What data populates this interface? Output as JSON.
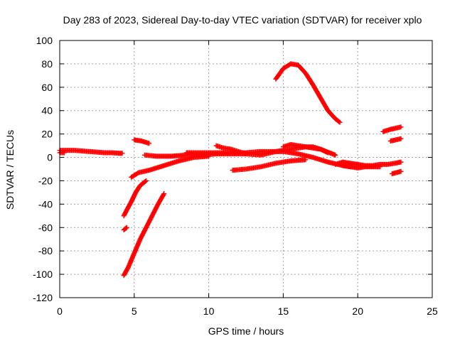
{
  "chart_data": {
    "type": "scatter",
    "title": "Day 283 of 2023, Sidereal Day-to-day VTEC variation (SDTVAR) for receiver xplo",
    "xlabel": "GPS time / hours",
    "ylabel": "SDTVAR / TECUs",
    "xlim": [
      0,
      25
    ],
    "ylim": [
      -120,
      100
    ],
    "xticks": [
      0,
      5,
      10,
      15,
      20,
      25
    ],
    "yticks": [
      -120,
      -100,
      -80,
      -60,
      -40,
      -20,
      0,
      20,
      40,
      60,
      80,
      100
    ],
    "grid": true,
    "series_color": "#ff0000",
    "marker": "plus",
    "series": [
      {
        "x": [
          0.0,
          0.5,
          1.0,
          1.5,
          2.0,
          2.5,
          3.0,
          3.5,
          4.0,
          4.2
        ],
        "y": [
          6,
          6,
          6,
          5.5,
          5,
          4.5,
          4,
          4,
          3.5,
          3.5
        ]
      },
      {
        "x": [
          0.0,
          0.3
        ],
        "y": [
          4,
          4
        ]
      },
      {
        "x": [
          4.3,
          4.5,
          4.8,
          5.1,
          5.4,
          5.8
        ],
        "y": [
          -50,
          -45,
          -38,
          -30,
          -24,
          -20
        ]
      },
      {
        "x": [
          4.3,
          4.5
        ],
        "y": [
          -62,
          -60
        ]
      },
      {
        "x": [
          4.3,
          4.6,
          5.0,
          5.4,
          5.8,
          6.2,
          6.6,
          7.0
        ],
        "y": [
          -101,
          -94,
          -82,
          -70,
          -60,
          -50,
          -40,
          -31
        ]
      },
      {
        "x": [
          4.8,
          5.3,
          6.0,
          7.0,
          8.0,
          9.0,
          10.0
        ],
        "y": [
          -17,
          -13,
          -11,
          -7,
          -3,
          0,
          1
        ]
      },
      {
        "x": [
          5.0,
          5.5,
          6.0
        ],
        "y": [
          15,
          14,
          12
        ]
      },
      {
        "x": [
          5.7,
          6.5,
          7.5,
          8.5,
          9.5,
          10.5,
          11.5,
          12.5,
          13.5,
          14.5,
          15.5,
          16.5,
          17.5,
          18.5
        ],
        "y": [
          2,
          1,
          1,
          2,
          2,
          3,
          3,
          3,
          2,
          5,
          7,
          9,
          7,
          2
        ]
      },
      {
        "x": [
          8.5,
          9.5,
          10.5,
          11.5,
          12.5,
          13.5,
          14.5,
          15.0,
          16.0,
          17.0,
          18.0,
          19.0,
          19.5
        ],
        "y": [
          4,
          4,
          4,
          4,
          4,
          5,
          5,
          5,
          3,
          0,
          -4,
          -7,
          -8
        ]
      },
      {
        "x": [
          10.5,
          11.0,
          11.5,
          12.0,
          12.5
        ],
        "y": [
          10,
          8,
          7,
          5,
          3
        ]
      },
      {
        "x": [
          11.6,
          12.5,
          13.5,
          14.5,
          15.5,
          16.5
        ],
        "y": [
          -11,
          -10,
          -8,
          -5,
          -3,
          -2
        ]
      },
      {
        "x": [
          14.5,
          15.0,
          15.5,
          16.0,
          16.5,
          17.0,
          17.5,
          18.0,
          18.5,
          18.8
        ],
        "y": [
          67,
          76,
          80,
          79,
          72,
          62,
          51,
          40,
          33,
          30
        ]
      },
      {
        "x": [
          15.0,
          15.5,
          16.0,
          16.5,
          17.0,
          17.5,
          18.0
        ],
        "y": [
          9,
          11,
          10,
          9,
          9,
          7,
          4
        ]
      },
      {
        "x": [
          18.5,
          19.0,
          19.5,
          20.0,
          20.5,
          21.0,
          21.5,
          22.0,
          22.5,
          22.9
        ],
        "y": [
          -6,
          -4,
          -5,
          -6,
          -7,
          -7,
          -6,
          -6,
          -5,
          -4
        ]
      },
      {
        "x": [
          19.0,
          19.5,
          20.0,
          20.5,
          21.0,
          21.5
        ],
        "y": [
          -7,
          -8,
          -9,
          -8,
          -8,
          -8
        ]
      },
      {
        "x": [
          21.7,
          22.2,
          22.9
        ],
        "y": [
          22,
          24,
          26
        ]
      },
      {
        "x": [
          22.2,
          22.9
        ],
        "y": [
          14,
          16
        ]
      },
      {
        "x": [
          22.3,
          22.9
        ],
        "y": [
          -14,
          -12
        ]
      }
    ]
  }
}
